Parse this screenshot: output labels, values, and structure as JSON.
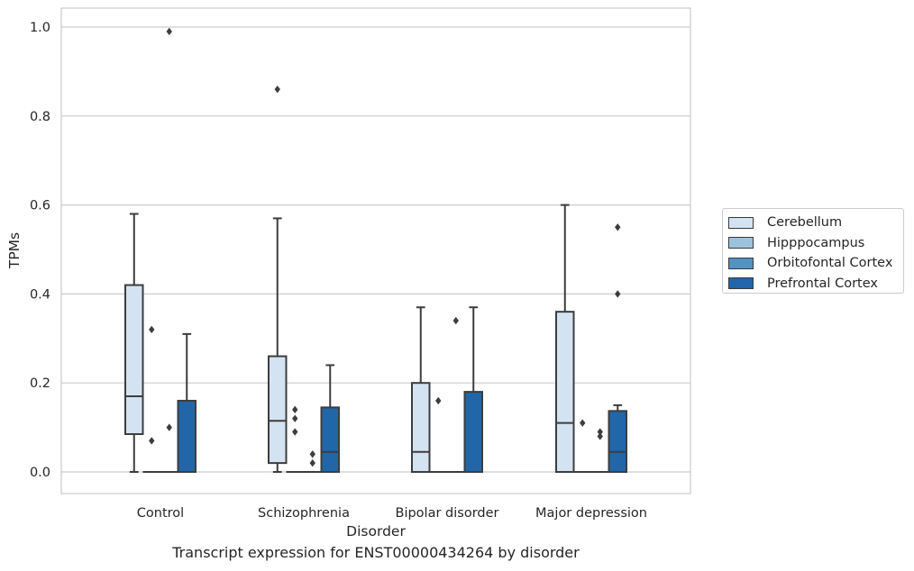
{
  "caption": "Transcript expression for ENST00000434264 by disorder",
  "chart_data": {
    "type": "box",
    "title": "",
    "xlabel": "Disorder",
    "ylabel": "TPMs",
    "ylim": [
      -0.048,
      1.04
    ],
    "yticks": [
      0.0,
      0.2,
      0.4,
      0.6,
      0.8,
      1.0
    ],
    "ytick_labels": [
      "0.0",
      "0.2",
      "0.4",
      "0.6",
      "0.8",
      "1.0"
    ],
    "grid": "horizontal",
    "legend_position": "right",
    "categories": [
      "Control",
      "Schizophrenia",
      "Bipolar disorder",
      "Major depression"
    ],
    "series": [
      {
        "name": "Cerebellum",
        "color": "#d4e3f2",
        "boxes": [
          {
            "whisker_low": 0.0,
            "q1": 0.085,
            "median": 0.17,
            "q3": 0.42,
            "whisker_high": 0.58,
            "outliers": []
          },
          {
            "whisker_low": 0.0,
            "q1": 0.02,
            "median": 0.115,
            "q3": 0.26,
            "whisker_high": 0.57,
            "outliers": [
              0.86
            ]
          },
          {
            "whisker_low": 0.0,
            "q1": 0.0,
            "median": 0.045,
            "q3": 0.2,
            "whisker_high": 0.37,
            "outliers": []
          },
          {
            "whisker_low": 0.0,
            "q1": 0.0,
            "median": 0.11,
            "q3": 0.36,
            "whisker_high": 0.6,
            "outliers": []
          }
        ]
      },
      {
        "name": "Hipppocampus",
        "color": "#9ac3dd",
        "boxes": [
          {
            "whisker_low": 0.0,
            "q1": 0.0,
            "median": 0.0,
            "q3": 0.0,
            "whisker_high": 0.0,
            "outliers": [
              0.32,
              0.07
            ]
          },
          {
            "whisker_low": 0.0,
            "q1": 0.0,
            "median": 0.0,
            "q3": 0.0,
            "whisker_high": 0.0,
            "outliers": [
              0.14,
              0.12,
              0.09
            ]
          },
          {
            "whisker_low": 0.0,
            "q1": 0.0,
            "median": 0.0,
            "q3": 0.0,
            "whisker_high": 0.0,
            "outliers": [
              0.16
            ]
          },
          {
            "whisker_low": 0.0,
            "q1": 0.0,
            "median": 0.0,
            "q3": 0.0,
            "whisker_high": 0.0,
            "outliers": [
              0.11
            ]
          }
        ]
      },
      {
        "name": "Orbitofontal Cortex",
        "color": "#5293c2",
        "boxes": [
          {
            "whisker_low": 0.0,
            "q1": 0.0,
            "median": 0.0,
            "q3": 0.0,
            "whisker_high": 0.0,
            "outliers": [
              0.99,
              0.1
            ]
          },
          {
            "whisker_low": 0.0,
            "q1": 0.0,
            "median": 0.0,
            "q3": 0.0,
            "whisker_high": 0.0,
            "outliers": [
              0.04,
              0.02
            ]
          },
          {
            "whisker_low": 0.0,
            "q1": 0.0,
            "median": 0.0,
            "q3": 0.0,
            "whisker_high": 0.0,
            "outliers": [
              0.34
            ]
          },
          {
            "whisker_low": 0.0,
            "q1": 0.0,
            "median": 0.0,
            "q3": 0.0,
            "whisker_high": 0.0,
            "outliers": [
              0.09,
              0.08
            ]
          }
        ]
      },
      {
        "name": "Prefrontal Cortex",
        "color": "#2166a8",
        "boxes": [
          {
            "whisker_low": 0.0,
            "q1": 0.0,
            "median": 0.0,
            "q3": 0.16,
            "whisker_high": 0.31,
            "outliers": []
          },
          {
            "whisker_low": 0.0,
            "q1": 0.0,
            "median": 0.045,
            "q3": 0.145,
            "whisker_high": 0.24,
            "outliers": []
          },
          {
            "whisker_low": 0.0,
            "q1": 0.0,
            "median": 0.0,
            "q3": 0.18,
            "whisker_high": 0.37,
            "outliers": []
          },
          {
            "whisker_low": 0.0,
            "q1": 0.0,
            "median": 0.045,
            "q3": 0.137,
            "whisker_high": 0.15,
            "outliers": [
              0.55,
              0.4
            ]
          }
        ]
      }
    ]
  }
}
